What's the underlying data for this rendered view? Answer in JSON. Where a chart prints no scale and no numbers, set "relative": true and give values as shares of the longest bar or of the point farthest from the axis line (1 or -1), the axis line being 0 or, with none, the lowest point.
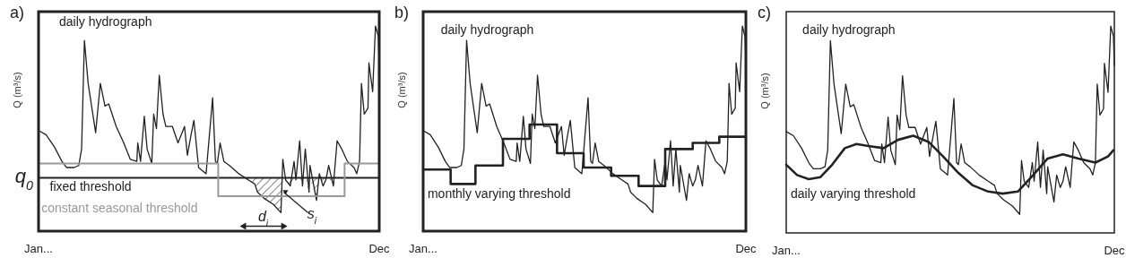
{
  "chart_data": [
    {
      "type": "line",
      "title": "a)",
      "ylabel": "Q (m³/s)",
      "relative": true,
      "xlim": [
        "--01-01",
        "--12-31"
      ],
      "xticks": [
        {
          "value": "--01-01",
          "label": "Jan..."
        },
        {
          "value": "--12-31",
          "label": "Dec"
        }
      ],
      "series": [
        {
          "name": "daily hydrograph",
          "color": "#222222",
          "x": [
            "--01-01",
            "--01-09",
            "--01-18",
            "--01-26",
            "--01-31",
            "--02-08",
            "--02-13",
            "--02-16",
            "--02-19",
            "--02-23",
            "--03-03",
            "--03-08",
            "--03-13",
            "--03-17",
            "--03-25",
            "--04-02",
            "--04-09",
            "--04-16",
            "--04-17",
            "--04-20",
            "--04-24",
            "--04-27",
            "--05-02",
            "--05-04",
            "--05-07",
            "--05-10",
            "--05-14",
            "--05-17",
            "--05-24",
            "--05-30",
            "--06-06",
            "--06-09",
            "--06-13",
            "--06-16",
            "--06-21",
            "--06-29",
            "--07-06",
            "--07-09",
            "--07-11",
            "--07-14",
            "--07-18",
            "--07-24",
            "--08-03",
            "--08-13",
            "--08-20",
            "--08-23",
            "--08-30",
            "--09-09",
            "--09-17",
            "--09-19",
            "--09-22",
            "--09-27",
            "--10-01",
            "--10-03",
            "--10-07",
            "--10-10",
            "--10-13",
            "--10-17",
            "--10-18",
            "--10-25",
            "--10-28",
            "--11-01",
            "--11-04",
            "--11-07",
            "--11-12",
            "--11-16",
            "--11-21",
            "--11-27",
            "--12-04",
            "--12-07",
            "--12-10",
            "--12-12",
            "--12-15",
            "--12-19",
            "--12-20",
            "--12-24",
            "--12-27",
            "--12-30",
            "--12-31"
          ],
          "values": [
            0.49,
            0.47,
            0.41,
            0.34,
            0.31,
            0.31,
            0.32,
            0.4,
            0.93,
            0.72,
            0.48,
            0.72,
            0.61,
            0.62,
            0.51,
            0.43,
            0.35,
            0.34,
            0.43,
            0.34,
            0.56,
            0.4,
            0.33,
            0.57,
            0.5,
            0.76,
            0.57,
            0.51,
            0.51,
            0.43,
            0.51,
            0.37,
            0.47,
            0.54,
            0.31,
            0.28,
            0.65,
            0.34,
            0.33,
            0.43,
            0.34,
            0.32,
            0.28,
            0.25,
            0.23,
            0.19,
            0.16,
            0.13,
            0.09,
            0.35,
            0.25,
            0.22,
            0.34,
            0.25,
            0.44,
            0.22,
            0.4,
            0.19,
            0.32,
            0.15,
            0.28,
            0.22,
            0.25,
            0.32,
            0.22,
            0.44,
            0.4,
            0.34,
            0.31,
            0.28,
            0.34,
            0.72,
            0.57,
            0.6,
            0.82,
            0.68,
            1.0,
            0.95,
            0.81
          ]
        },
        {
          "name": "constant seasonal threshold",
          "type": "step",
          "color": "#999999",
          "x": [
            "--01-01",
            "--07-12",
            "--11-24",
            "--12-31"
          ],
          "values": [
            0.33,
            0.17,
            0.33,
            0.33
          ]
        }
      ],
      "ref_lines": [
        {
          "axis": "y",
          "value": 0.26,
          "label": "fixed threshold",
          "color": "#222222"
        }
      ],
      "annotations": [
        "q$_{0}$",
        "d$_{i}$",
        "s$_{i}$"
      ]
    },
    {
      "type": "line",
      "title": "b)",
      "ylabel": "Q (m³/s)",
      "relative": true,
      "xlim": [
        "--01-01",
        "--12-31"
      ],
      "xticks": [
        {
          "value": "--01-01",
          "label": "Jan..."
        },
        {
          "value": "--12-31",
          "label": "Dec"
        }
      ],
      "series": [
        {
          "name": "daily hydrograph",
          "color": "#222222",
          "x": [
            "--01-01",
            "--01-09",
            "--01-18",
            "--01-26",
            "--01-31",
            "--02-08",
            "--02-13",
            "--02-16",
            "--02-19",
            "--02-23",
            "--03-03",
            "--03-08",
            "--03-13",
            "--03-17",
            "--03-25",
            "--04-02",
            "--04-09",
            "--04-16",
            "--04-17",
            "--04-20",
            "--04-24",
            "--04-27",
            "--05-02",
            "--05-04",
            "--05-07",
            "--05-10",
            "--05-14",
            "--05-17",
            "--05-24",
            "--05-30",
            "--06-06",
            "--06-09",
            "--06-13",
            "--06-16",
            "--06-21",
            "--06-29",
            "--07-06",
            "--07-09",
            "--07-11",
            "--07-14",
            "--07-18",
            "--07-24",
            "--08-03",
            "--08-13",
            "--08-20",
            "--08-23",
            "--08-30",
            "--09-09",
            "--09-17",
            "--09-19",
            "--09-22",
            "--09-27",
            "--10-01",
            "--10-03",
            "--10-07",
            "--10-10",
            "--10-13",
            "--10-17",
            "--10-18",
            "--10-25",
            "--10-28",
            "--11-01",
            "--11-04",
            "--11-07",
            "--11-12",
            "--11-16",
            "--11-21",
            "--11-27",
            "--12-04",
            "--12-07",
            "--12-10",
            "--12-12",
            "--12-15",
            "--12-19",
            "--12-20",
            "--12-24",
            "--12-27",
            "--12-30",
            "--12-31"
          ],
          "values": [
            0.49,
            0.47,
            0.41,
            0.34,
            0.31,
            0.31,
            0.32,
            0.4,
            0.93,
            0.72,
            0.48,
            0.72,
            0.61,
            0.62,
            0.51,
            0.43,
            0.35,
            0.34,
            0.43,
            0.34,
            0.56,
            0.4,
            0.33,
            0.57,
            0.5,
            0.76,
            0.57,
            0.51,
            0.51,
            0.43,
            0.51,
            0.37,
            0.47,
            0.54,
            0.31,
            0.28,
            0.65,
            0.34,
            0.33,
            0.43,
            0.34,
            0.32,
            0.28,
            0.25,
            0.23,
            0.19,
            0.16,
            0.13,
            0.09,
            0.35,
            0.25,
            0.22,
            0.34,
            0.25,
            0.44,
            0.22,
            0.4,
            0.19,
            0.32,
            0.15,
            0.28,
            0.22,
            0.25,
            0.32,
            0.22,
            0.44,
            0.4,
            0.34,
            0.31,
            0.28,
            0.34,
            0.72,
            0.57,
            0.6,
            0.82,
            0.68,
            1.0,
            0.95,
            0.81
          ]
        },
        {
          "name": "monthly varying threshold",
          "type": "step",
          "color": "#222222",
          "x": [
            "--01-01",
            "--02-01",
            "--03-01",
            "--04-01",
            "--05-01",
            "--06-01",
            "--07-01",
            "--08-01",
            "--09-01",
            "--10-01",
            "--11-01",
            "--12-01",
            "--12-31"
          ],
          "values": [
            0.3,
            0.23,
            0.32,
            0.45,
            0.52,
            0.38,
            0.31,
            0.27,
            0.22,
            0.4,
            0.43,
            0.46,
            0.46
          ]
        }
      ]
    },
    {
      "type": "line",
      "title": "c)",
      "ylabel": "Q (m³/s)",
      "relative": true,
      "xlim": [
        "--01-01",
        "--12-31"
      ],
      "xticks": [
        {
          "value": "--01-01",
          "label": "Jan..."
        },
        {
          "value": "--12-31",
          "label": "Dec"
        }
      ],
      "series": [
        {
          "name": "daily hydrograph",
          "color": "#222222",
          "x": [
            "--01-01",
            "--01-09",
            "--01-18",
            "--01-26",
            "--01-31",
            "--02-08",
            "--02-13",
            "--02-16",
            "--02-19",
            "--02-23",
            "--03-03",
            "--03-08",
            "--03-13",
            "--03-17",
            "--03-25",
            "--04-02",
            "--04-09",
            "--04-16",
            "--04-17",
            "--04-20",
            "--04-24",
            "--04-27",
            "--05-02",
            "--05-04",
            "--05-07",
            "--05-10",
            "--05-14",
            "--05-17",
            "--05-24",
            "--05-30",
            "--06-06",
            "--06-09",
            "--06-13",
            "--06-16",
            "--06-21",
            "--06-29",
            "--07-06",
            "--07-09",
            "--07-11",
            "--07-14",
            "--07-18",
            "--07-24",
            "--08-03",
            "--08-13",
            "--08-20",
            "--08-23",
            "--08-30",
            "--09-09",
            "--09-17",
            "--09-19",
            "--09-22",
            "--09-27",
            "--10-01",
            "--10-03",
            "--10-07",
            "--10-10",
            "--10-13",
            "--10-17",
            "--10-18",
            "--10-25",
            "--10-28",
            "--11-01",
            "--11-04",
            "--11-07",
            "--11-12",
            "--11-16",
            "--11-21",
            "--11-27",
            "--12-04",
            "--12-07",
            "--12-10",
            "--12-12",
            "--12-15",
            "--12-19",
            "--12-20",
            "--12-24",
            "--12-27",
            "--12-30",
            "--12-31"
          ],
          "values": [
            0.49,
            0.47,
            0.41,
            0.34,
            0.31,
            0.31,
            0.32,
            0.4,
            0.93,
            0.72,
            0.48,
            0.72,
            0.61,
            0.62,
            0.51,
            0.43,
            0.35,
            0.34,
            0.43,
            0.34,
            0.56,
            0.4,
            0.33,
            0.57,
            0.5,
            0.76,
            0.57,
            0.51,
            0.51,
            0.43,
            0.51,
            0.37,
            0.47,
            0.54,
            0.31,
            0.28,
            0.65,
            0.34,
            0.33,
            0.43,
            0.34,
            0.32,
            0.28,
            0.25,
            0.23,
            0.19,
            0.16,
            0.13,
            0.09,
            0.35,
            0.25,
            0.22,
            0.34,
            0.25,
            0.44,
            0.22,
            0.4,
            0.19,
            0.32,
            0.15,
            0.28,
            0.22,
            0.25,
            0.32,
            0.22,
            0.44,
            0.4,
            0.34,
            0.31,
            0.28,
            0.34,
            0.72,
            0.57,
            0.6,
            0.82,
            0.68,
            1.0,
            0.95,
            0.81
          ]
        },
        {
          "name": "daily varying threshold",
          "color": "#222222",
          "x": [
            "--01-01",
            "--01-13",
            "--01-26",
            "--02-08",
            "--02-21",
            "--03-07",
            "--03-20",
            "--04-02",
            "--04-19",
            "--05-05",
            "--05-22",
            "--06-08",
            "--06-24",
            "--07-11",
            "--07-27",
            "--08-13",
            "--08-29",
            "--09-15",
            "--10-02",
            "--10-18",
            "--11-04",
            "--11-21",
            "--12-10",
            "--12-24",
            "--12-30"
          ],
          "values": [
            0.33,
            0.28,
            0.26,
            0.27,
            0.33,
            0.41,
            0.43,
            0.42,
            0.41,
            0.45,
            0.47,
            0.44,
            0.37,
            0.29,
            0.23,
            0.2,
            0.19,
            0.2,
            0.28,
            0.36,
            0.38,
            0.36,
            0.34,
            0.37,
            0.4
          ]
        }
      ]
    }
  ]
}
